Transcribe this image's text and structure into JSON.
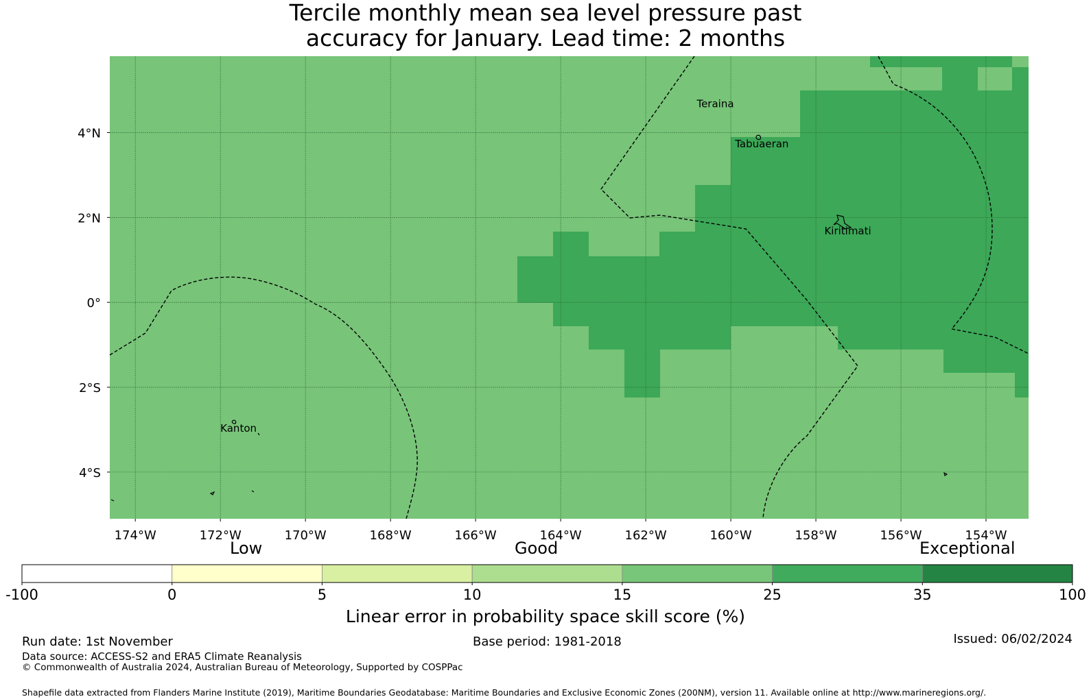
{
  "title": {
    "line1": "Tercile monthly mean sea level pressure past",
    "line2": "accuracy for January. Lead time: 2 months"
  },
  "map": {
    "x_axis": {
      "range_deg_lon": [
        -174.6,
        -153.0
      ],
      "ticks": [
        {
          "value": -174,
          "label": "174°W"
        },
        {
          "value": -172,
          "label": "172°W"
        },
        {
          "value": -170,
          "label": "170°W"
        },
        {
          "value": -168,
          "label": "168°W"
        },
        {
          "value": -166,
          "label": "166°W"
        },
        {
          "value": -164,
          "label": "164°W"
        },
        {
          "value": -162,
          "label": "162°W"
        },
        {
          "value": -160,
          "label": "160°W"
        },
        {
          "value": -158,
          "label": "158°W"
        },
        {
          "value": -156,
          "label": "156°W"
        },
        {
          "value": -154,
          "label": "154°W"
        }
      ]
    },
    "y_axis": {
      "range_deg_lat": [
        -5.1,
        5.8
      ],
      "ticks": [
        {
          "value": 4,
          "label": "4°N"
        },
        {
          "value": 2,
          "label": "2°N"
        },
        {
          "value": 0,
          "label": "0°"
        },
        {
          "value": -2,
          "label": "2°S"
        },
        {
          "value": -4,
          "label": "4°S"
        }
      ]
    },
    "place_labels": [
      {
        "name": "Teraina",
        "lon": -160.8,
        "lat": 4.6
      },
      {
        "name": "Tabuaeran",
        "lon": -159.9,
        "lat": 3.65
      },
      {
        "name": "Kiritimati",
        "lon": -157.8,
        "lat": 1.6
      },
      {
        "name": "Kanton",
        "lon": -172.0,
        "lat": -3.05
      }
    ],
    "colors": {
      "background_skill": "#78c479",
      "high_skill": "#3ca858",
      "grid": "#2e6b34"
    },
    "high_skill_cells_note_category": "25 to 35"
  },
  "colorbar": {
    "labels": {
      "low": "Low",
      "good": "Good",
      "exceptional": "Exceptional"
    },
    "ticks": [
      "-100",
      "0",
      "5",
      "10",
      "15",
      "25",
      "35",
      "100"
    ],
    "colors": [
      "#ffffff",
      "#ffffcc",
      "#d9f0a3",
      "#addd8e",
      "#78c679",
      "#41ab5d",
      "#238443"
    ],
    "title": "Linear error in probability space skill score (%)"
  },
  "footer": {
    "run_date": "Run date: 1st November",
    "base_period": "Base period: 1981-2018",
    "issued": "Issued: 06/02/2024",
    "data_source": "Data source: ACCESS-S2 and ERA5 Climate Reanalysis",
    "copyright": "© Commonwealth of Australia 2024, Australian Bureau of Meteorology, Supported by COSPPac",
    "shapefile": "Shapefile data extracted from Flanders Marine Institute (2019), Maritime Boundaries Geodatabase: Maritime Boundaries and Exclusive Economic Zones (200NM), version 11. Available online at http://www.marineregions.org/."
  }
}
